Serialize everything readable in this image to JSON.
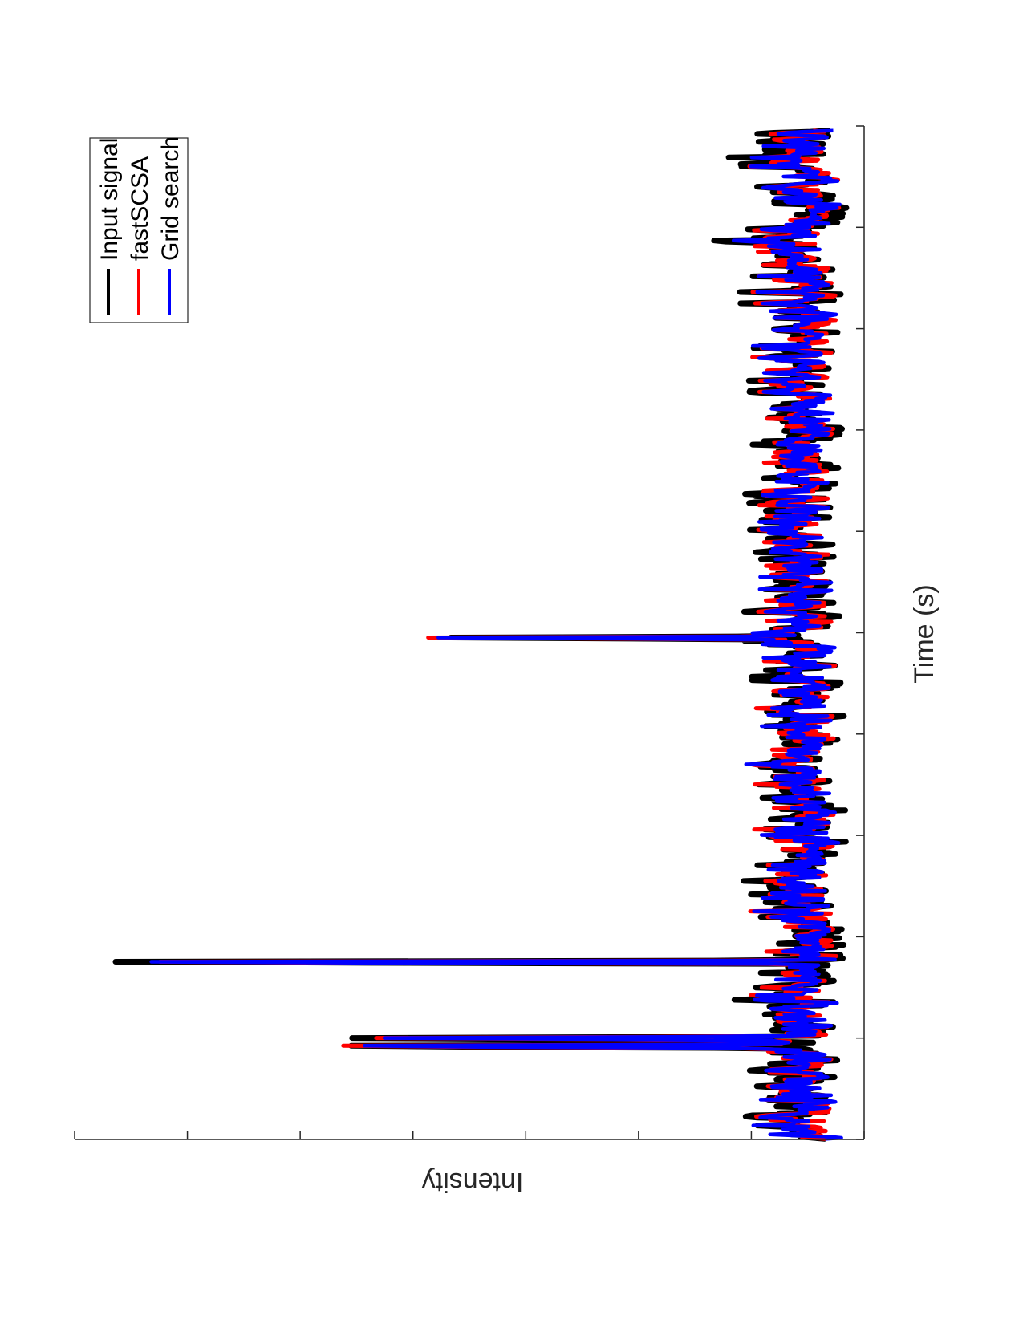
{
  "chart_data": {
    "type": "line",
    "orientation": "rotated 90 degrees clockwise",
    "xlabel": "Time (s)",
    "ylabel": "Intensity",
    "x_range": [
      0,
      1000
    ],
    "y_range": [
      0,
      7
    ],
    "x_tick_count": 11,
    "y_tick_count": 8,
    "grid": false,
    "legend_placement": "top-right",
    "peaks": [
      {
        "x": 92,
        "y": 4.3,
        "width": 1.2
      },
      {
        "x": 100,
        "y": 3.8,
        "width": 1.2
      },
      {
        "x": 175,
        "y": 6.9,
        "width": 1.0
      },
      {
        "x": 495,
        "y": 3.6,
        "width": 1.0
      }
    ],
    "series": [
      {
        "name": "Input signal",
        "color": "#000000",
        "noise_amplitude": 0.22
      },
      {
        "name": "fastSCSA",
        "color": "#ff0000",
        "noise_amplitude": 0.16
      },
      {
        "name": "Grid search",
        "color": "#0000ff",
        "noise_amplitude": 0.15
      }
    ]
  }
}
